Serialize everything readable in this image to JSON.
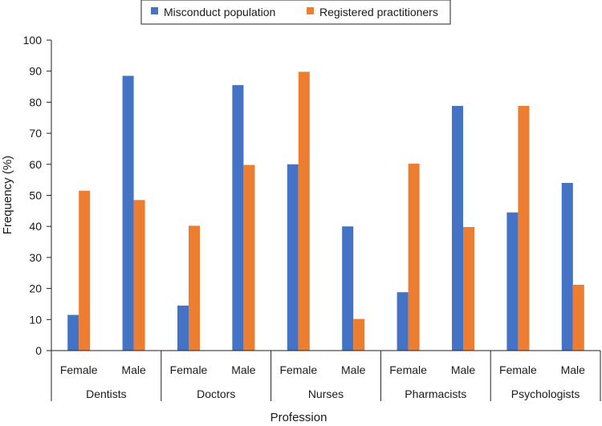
{
  "chart_data": {
    "type": "bar",
    "xlabel": "Profession",
    "ylabel": "Frequency (%)",
    "ylim": [
      0,
      100
    ],
    "yticks": [
      0,
      10,
      20,
      30,
      40,
      50,
      60,
      70,
      80,
      90,
      100
    ],
    "grid": false,
    "legend_position": "top-center",
    "groups": [
      "Dentists",
      "Doctors",
      "Nurses",
      "Pharmacists",
      "Psychologists"
    ],
    "subcategories": [
      "Female",
      "Male"
    ],
    "series": [
      {
        "name": "Misconduct population",
        "color": "#4472c4",
        "values": [
          11.5,
          88.5,
          14.5,
          85.5,
          60,
          40,
          18.8,
          78.8,
          44.5,
          54
        ]
      },
      {
        "name": "Registered practitioners",
        "color": "#ed7d31",
        "values": [
          51.5,
          48.5,
          40.2,
          59.8,
          89.8,
          10.2,
          60.2,
          39.8,
          78.8,
          21.2
        ]
      }
    ]
  }
}
